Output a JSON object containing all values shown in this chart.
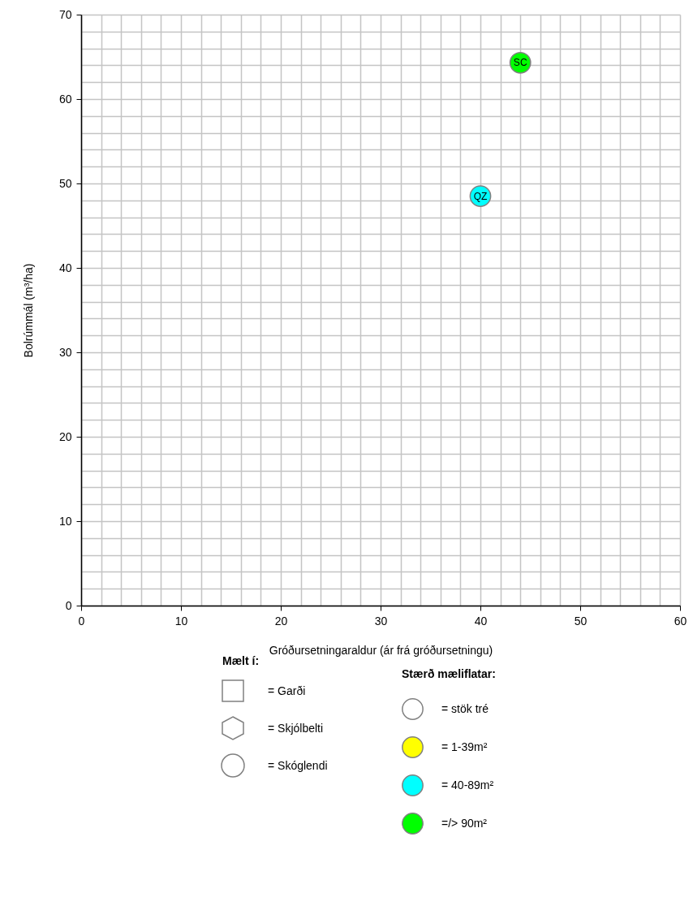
{
  "chart_data": {
    "type": "scatter",
    "xlabel": "Gróðursetningaraldur (ár frá gróðursetningu)",
    "ylabel": "Bolrúmmál (m³/ha)",
    "legend_title": "Stærð mæliflatar:",
    "legend": "bottom",
    "grid": true,
    "marker": "circle",
    "xlim": [
      0,
      60
    ],
    "ylim": [
      0,
      70
    ],
    "xticks": [
      0,
      {
        "value": 2,
        "label": null
      },
      {
        "value": 4,
        "label": null
      },
      {
        "value": 6,
        "label": null
      },
      {
        "value": 8,
        "label": null
      },
      10,
      {
        "value": 12,
        "label": null
      },
      {
        "value": 14,
        "label": null
      },
      {
        "value": 16,
        "label": null
      },
      {
        "value": 18,
        "label": null
      },
      20,
      {
        "value": 22,
        "label": null
      },
      {
        "value": 24,
        "label": null
      },
      {
        "value": 26,
        "label": null
      },
      {
        "value": 28,
        "label": null
      },
      30,
      {
        "value": 32,
        "label": null
      },
      {
        "value": 34,
        "label": null
      },
      {
        "value": 36,
        "label": null
      },
      {
        "value": 38,
        "label": null
      },
      40,
      {
        "value": 42,
        "label": null
      },
      {
        "value": 44,
        "label": null
      },
      {
        "value": 46,
        "label": null
      },
      {
        "value": 48,
        "label": null
      },
      50,
      {
        "value": 52,
        "label": null
      },
      {
        "value": 54,
        "label": null
      },
      {
        "value": 56,
        "label": null
      },
      {
        "value": 58,
        "label": null
      },
      60
    ],
    "yticks": [
      0,
      {
        "value": 2,
        "label": null
      },
      {
        "value": 4,
        "label": null
      },
      {
        "value": 6,
        "label": null
      },
      {
        "value": 8,
        "label": null
      },
      10,
      {
        "value": 12,
        "label": null
      },
      {
        "value": 14,
        "label": null
      },
      {
        "value": 16,
        "label": null
      },
      {
        "value": 18,
        "label": null
      },
      20,
      {
        "value": 22,
        "label": null
      },
      {
        "value": 24,
        "label": null
      },
      {
        "value": 26,
        "label": null
      },
      {
        "value": 28,
        "label": null
      },
      30,
      {
        "value": 32,
        "label": null
      },
      {
        "value": 34,
        "label": null
      },
      {
        "value": 36,
        "label": null
      },
      {
        "value": 38,
        "label": null
      },
      40,
      {
        "value": 42,
        "label": null
      },
      {
        "value": 44,
        "label": null
      },
      {
        "value": 46,
        "label": null
      },
      {
        "value": 48,
        "label": null
      },
      50,
      {
        "value": 52,
        "label": null
      },
      {
        "value": 54,
        "label": null
      },
      {
        "value": 56,
        "label": null
      },
      {
        "value": 58,
        "label": null
      },
      60,
      {
        "value": 62,
        "label": null
      },
      {
        "value": 64,
        "label": null
      },
      {
        "value": 66,
        "label": null
      },
      {
        "value": 68,
        "label": null
      },
      70
    ],
    "series": [
      {
        "name": "= stök tré",
        "color": "#ffffff"
      },
      {
        "name": "= 1-39m²",
        "color": "#ffff00"
      },
      {
        "name": "= 40-89m²",
        "color": "#00ffff",
        "x": [
          40
        ],
        "values": [
          48.5
        ]
      },
      {
        "name": "=/> 90m²",
        "color": "#00ff00",
        "x": [
          44
        ],
        "values": [
          64.3
        ]
      }
    ],
    "annotations": [
      {
        "text": "QZ",
        "x": 40,
        "y": 48.5
      },
      {
        "text": "SC",
        "x": 44,
        "y": 64.3
      },
      "Mælt í:",
      "= Garði",
      "= Skjólbelti",
      "= Skóglendi"
    ]
  }
}
